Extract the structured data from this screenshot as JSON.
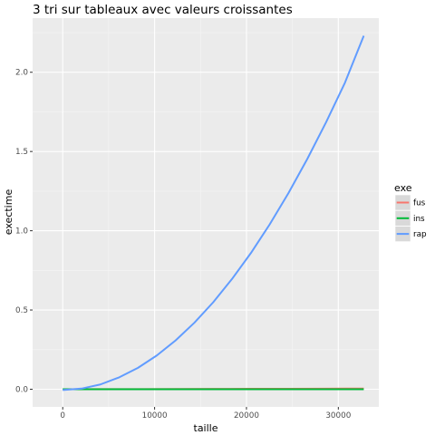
{
  "chart_data": {
    "type": "line",
    "title": "3 tri sur tableaux avec valeurs croissantes",
    "xlabel": "taille",
    "ylabel": "exectime",
    "xlim": [
      -3277,
      34407
    ],
    "ylim": [
      -0.1115,
      2.3415
    ],
    "x_ticks": [
      0,
      10000,
      20000,
      30000
    ],
    "x_tick_labels": [
      "0",
      "10000",
      "20000",
      "30000"
    ],
    "y_ticks": [
      0.0,
      0.5,
      1.0,
      1.5,
      2.0
    ],
    "y_tick_labels": [
      "0.0",
      "0.5",
      "1.0",
      "1.5",
      "2.0"
    ],
    "grid": true,
    "legend": {
      "title": "exe",
      "placement": "right"
    },
    "series": [
      {
        "name": "fus",
        "color": "#F8766D",
        "x": [
          0,
          4096,
          8192,
          12288,
          16384,
          20480,
          24576,
          28672,
          32768
        ],
        "y": [
          0.0,
          0.0005,
          0.001,
          0.0015,
          0.002,
          0.0026,
          0.0031,
          0.0037,
          0.0042
        ]
      },
      {
        "name": "ins",
        "color": "#00BA38",
        "x": [
          0,
          4096,
          8192,
          12288,
          16384,
          20480,
          24576,
          28672,
          32768
        ],
        "y": [
          0.0,
          0.0,
          0.0,
          0.0,
          0.0,
          0.0,
          0.0,
          0.0,
          0.0
        ]
      },
      {
        "name": "rap",
        "color": "#619CFF",
        "x": [
          0,
          2048,
          4096,
          6144,
          8192,
          10240,
          12288,
          14336,
          16384,
          18432,
          20480,
          22528,
          24576,
          26624,
          28672,
          30720,
          32768
        ],
        "y": [
          -0.005,
          0.004,
          0.03,
          0.075,
          0.135,
          0.213,
          0.308,
          0.42,
          0.549,
          0.696,
          0.859,
          1.04,
          1.238,
          1.453,
          1.685,
          1.934,
          2.23
        ]
      }
    ]
  }
}
